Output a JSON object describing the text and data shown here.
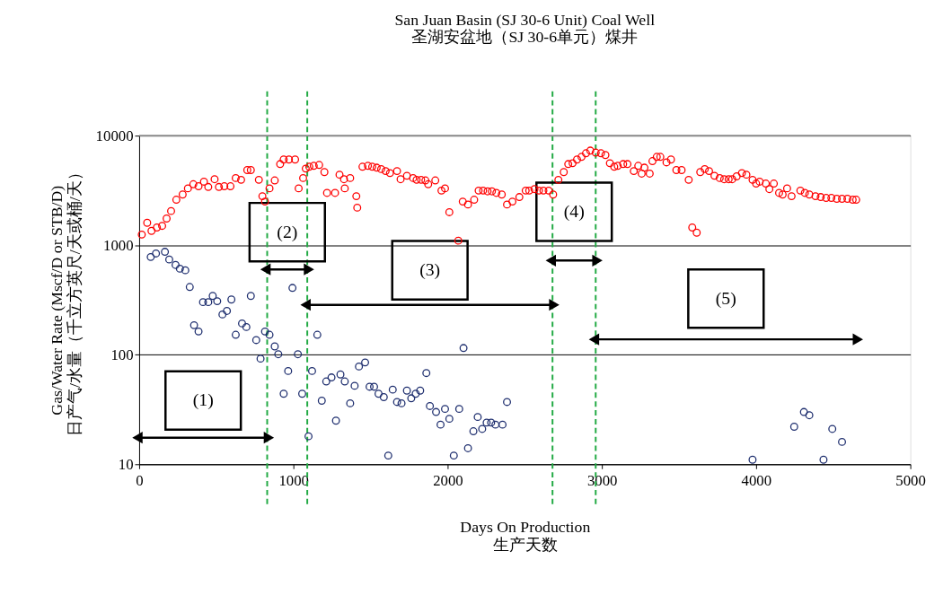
{
  "chart_data": {
    "type": "scatter",
    "title": "San Juan Basin (SJ 30-6 Unit) Coal Well\n圣湖安盆地（SJ 30-6单元）煤井",
    "xlabel": "Days On Production\n生产天数",
    "ylabel": "Gas/Water Rate (Mscf/D or STB/D)\n日产气/水量（千立方英尺/天或桶/天）",
    "xlim": [
      0,
      5000
    ],
    "xticks": [
      0,
      1000,
      2000,
      3000,
      4000,
      5000
    ],
    "ylim": [
      10,
      10000
    ],
    "yticks": [
      10,
      100,
      1000,
      10000
    ],
    "log": "y",
    "grid": "y",
    "marker": "circle",
    "series": [
      {
        "color": "#ff0000",
        "x": [
          17,
          52,
          80,
          115,
          149,
          178,
          207,
          241,
          282,
          316,
          351,
          385,
          420,
          448,
          489,
          517,
          552,
          592,
          626,
          661,
          701,
          724,
          776,
          799,
          816,
          845,
          879,
          914,
          937,
          971,
          1011,
          1034,
          1063,
          1080,
          1103,
          1132,
          1167,
          1201,
          1218,
          1270,
          1299,
          1328,
          1333,
          1368,
          1408,
          1414,
          1448,
          1483,
          1511,
          1540,
          1569,
          1598,
          1626,
          1672,
          1695,
          1736,
          1776,
          1799,
          1828,
          1856,
          1874,
          1920,
          1960,
          1983,
          2011,
          2069,
          2098,
          2132,
          2172,
          2201,
          2230,
          2259,
          2287,
          2316,
          2351,
          2385,
          2420,
          2465,
          2506,
          2529,
          2563,
          2592,
          2621,
          2655,
          2684,
          2718,
          2753,
          2782,
          2810,
          2839,
          2868,
          2897,
          2925,
          2960,
          2994,
          3023,
          3052,
          3080,
          3103,
          3138,
          3166,
          3207,
          3236,
          3258,
          3276,
          3310,
          3328,
          3356,
          3379,
          3419,
          3448,
          3483,
          3517,
          3563,
          3586,
          3615,
          3638,
          3667,
          3695,
          3730,
          3764,
          3793,
          3822,
          3845,
          3874,
          3908,
          3937,
          3977,
          4000,
          4023,
          4063,
          4086,
          4115,
          4149,
          4172,
          4201,
          4230,
          4287,
          4316,
          4345,
          4385,
          4419,
          4454,
          4488,
          4523,
          4557,
          4592,
          4626,
          4649
        ],
        "values": [
          1250,
          1600,
          1350,
          1450,
          1500,
          1750,
          2050,
          2600,
          2900,
          3300,
          3600,
          3450,
          3800,
          3400,
          4000,
          3400,
          3450,
          3450,
          4100,
          3950,
          4850,
          4850,
          3950,
          2800,
          2500,
          3300,
          3900,
          5500,
          6050,
          6050,
          6050,
          3300,
          4100,
          5000,
          5200,
          5300,
          5400,
          4650,
          3000,
          3000,
          4400,
          4000,
          3300,
          4100,
          2800,
          2200,
          5200,
          5300,
          5200,
          5100,
          4950,
          4750,
          4550,
          4750,
          4000,
          4300,
          4100,
          3950,
          3950,
          3900,
          3600,
          3900,
          3150,
          3300,
          2000,
          1100,
          2500,
          2350,
          2600,
          3150,
          3150,
          3100,
          3100,
          3000,
          2900,
          2350,
          2500,
          2750,
          3150,
          3150,
          3250,
          3150,
          3150,
          3150,
          2900,
          3950,
          4650,
          5500,
          5600,
          6050,
          6400,
          6900,
          7300,
          7000,
          6900,
          6650,
          5600,
          5200,
          5300,
          5500,
          5500,
          4750,
          5300,
          4500,
          5100,
          4500,
          5850,
          6400,
          6400,
          5700,
          6050,
          4850,
          4850,
          3950,
          1450,
          1300,
          4650,
          4950,
          4750,
          4300,
          4100,
          4000,
          4000,
          4000,
          4250,
          4550,
          4400,
          3950,
          3650,
          3800,
          3650,
          3250,
          3650,
          3000,
          2900,
          3300,
          2800,
          3150,
          3000,
          2900,
          2800,
          2750,
          2700,
          2700,
          2650,
          2650,
          2650,
          2600,
          2600
        ]
      },
      {
        "color": "#1f2f6f",
        "x": [
          75,
          109,
          167,
          195,
          236,
          264,
          299,
          328,
          356,
          385,
          414,
          448,
          477,
          506,
          540,
          569,
          598,
          626,
          667,
          695,
          724,
          759,
          787,
          816,
          845,
          879,
          902,
          937,
          966,
          994,
          1029,
          1057,
          1098,
          1121,
          1155,
          1184,
          1213,
          1247,
          1276,
          1305,
          1333,
          1368,
          1397,
          1425,
          1465,
          1494,
          1523,
          1552,
          1586,
          1615,
          1644,
          1672,
          1701,
          1736,
          1764,
          1793,
          1822,
          1862,
          1885,
          1925,
          1954,
          1983,
          2011,
          2040,
          2075,
          2103,
          2132,
          2167,
          2195,
          2224,
          2253,
          2282,
          2310,
          2356,
          2385,
          3977,
          4247,
          4310,
          4345,
          4437,
          4494,
          4557
        ],
        "values": [
          780,
          840,
          870,
          740,
          660,
          610,
          590,
          415,
          186,
          163,
          302,
          302,
          344,
          308,
          233,
          251,
          319,
          152,
          193,
          179,
          344,
          136,
          92,
          163,
          152,
          119,
          101,
          44,
          71,
          407,
          101,
          44,
          18,
          71,
          152,
          38,
          57,
          62,
          25,
          66,
          57,
          36,
          52,
          78,
          85,
          51,
          51,
          44,
          41,
          12,
          48,
          37,
          36,
          47,
          40,
          44,
          47,
          68,
          34,
          30,
          23,
          32,
          26,
          12,
          32,
          115,
          14,
          20,
          27,
          21,
          24,
          24,
          23,
          23,
          37,
          11,
          22,
          30,
          28,
          11,
          21,
          16
        ]
      }
    ],
    "ref_lines": [
      {
        "axis": "x",
        "value": 830,
        "color": "#22aa44",
        "line_style": "dashed"
      },
      {
        "axis": "x",
        "value": 1090,
        "color": "#22aa44",
        "line_style": "dashed"
      },
      {
        "axis": "x",
        "value": 2680,
        "color": "#22aa44",
        "line_style": "dashed"
      },
      {
        "axis": "x",
        "value": 2960,
        "color": "#22aa44",
        "line_style": "dashed"
      }
    ],
    "annotations": [
      "(1)",
      "(2)",
      "(3)",
      "(4)",
      "(5)"
    ]
  }
}
